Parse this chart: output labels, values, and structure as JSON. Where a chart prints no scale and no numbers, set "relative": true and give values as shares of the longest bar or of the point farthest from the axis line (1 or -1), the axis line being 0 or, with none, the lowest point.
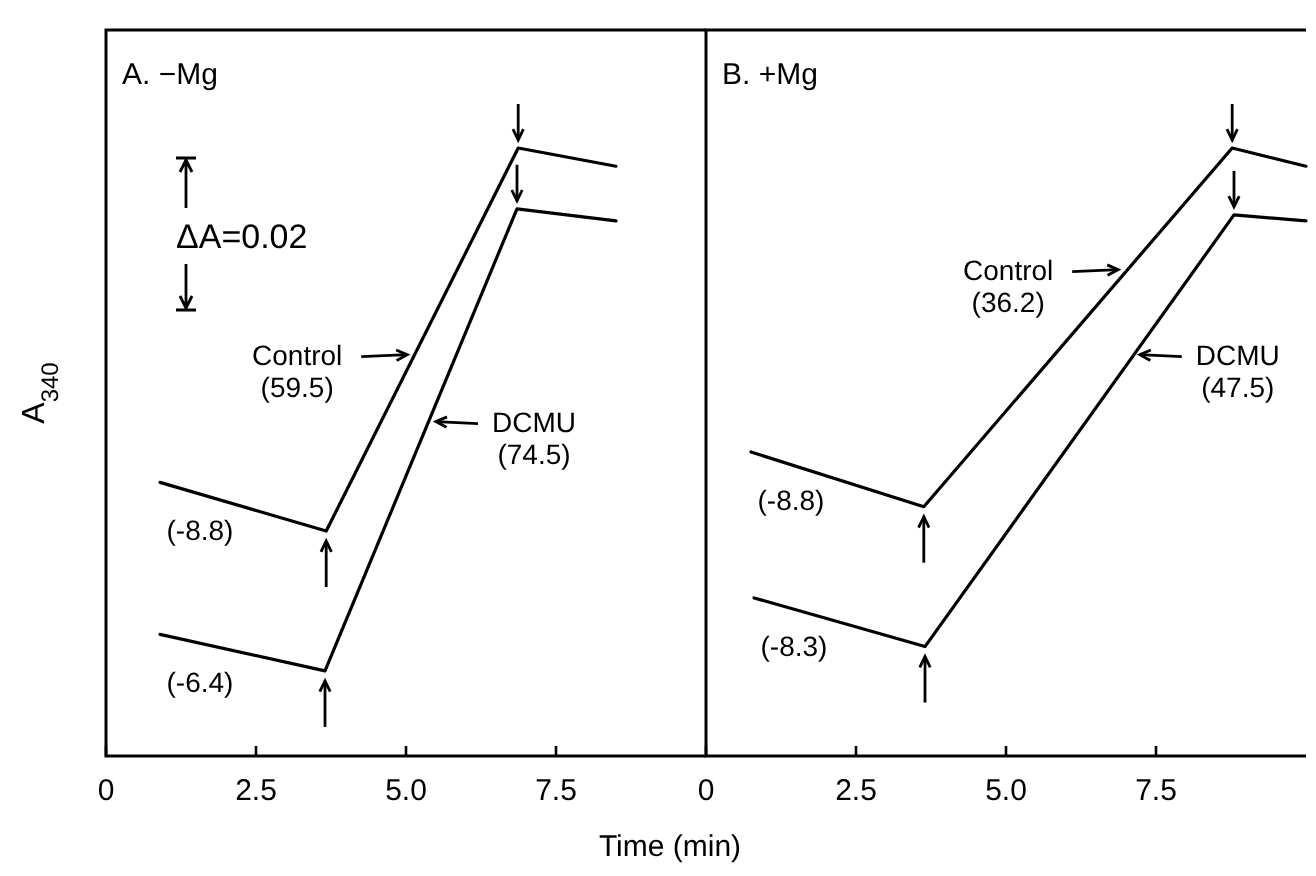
{
  "chart_data": [
    {
      "type": "line",
      "relative": true,
      "title": "A. −Mg",
      "xlabel": "Time (min)",
      "ylabel": "A$_{340}$",
      "xlim": [
        0,
        10
      ],
      "xticks": [
        0,
        2.5,
        {
          "value": 5,
          "label": "5.0"
        },
        7.5
      ],
      "series": [
        {
          "color": "#000000",
          "x": [
            0.9,
            3.67,
            6.87,
            8.5
          ],
          "values": [
            0.45,
            0.37,
            1,
            0.97
          ]
        },
        {
          "color": "#000000",
          "x": [
            0.9,
            3.65,
            6.85,
            8.5
          ],
          "values": [
            0.2,
            0.14,
            0.9,
            0.88
          ]
        }
      ],
      "annotations": [
        "ΔA=0.02",
        {
          "text": "Control (59.5)",
          "x": 5.12,
          "y": 0.66
        },
        {
          "text": "DCMU (74.5)",
          "x": 5.4,
          "y": 0.55
        },
        {
          "text": "(-8.8)",
          "x": 0.9,
          "y": 0.45
        },
        {
          "text": "(-6.4)",
          "x": 0.9,
          "y": 0.2
        }
      ]
    },
    {
      "type": "line",
      "relative": true,
      "title": "B. +Mg",
      "xlim": [
        0,
        10
      ],
      "xticks": [
        0,
        2.5,
        {
          "value": 5,
          "label": "5.0"
        },
        7.5
      ],
      "series": [
        {
          "color": "#000000",
          "x": [
            0.75,
            3.63,
            8.77,
            10
          ],
          "values": [
            0.5,
            0.41,
            1,
            0.97
          ]
        },
        {
          "color": "#000000",
          "x": [
            0.8,
            3.65,
            8.8,
            10
          ],
          "values": [
            0.26,
            0.18,
            0.89,
            0.88
          ]
        }
      ],
      "annotations": [
        {
          "text": "Control (36.2)",
          "x": 6.97,
          "y": 0.8
        },
        {
          "text": "DCMU (47.5)",
          "x": 7.13,
          "y": 0.66
        },
        {
          "text": "(-8.8)",
          "x": 0.75,
          "y": 0.5
        },
        {
          "text": "(-8.3)",
          "x": 0.8,
          "y": 0.26
        }
      ]
    }
  ]
}
